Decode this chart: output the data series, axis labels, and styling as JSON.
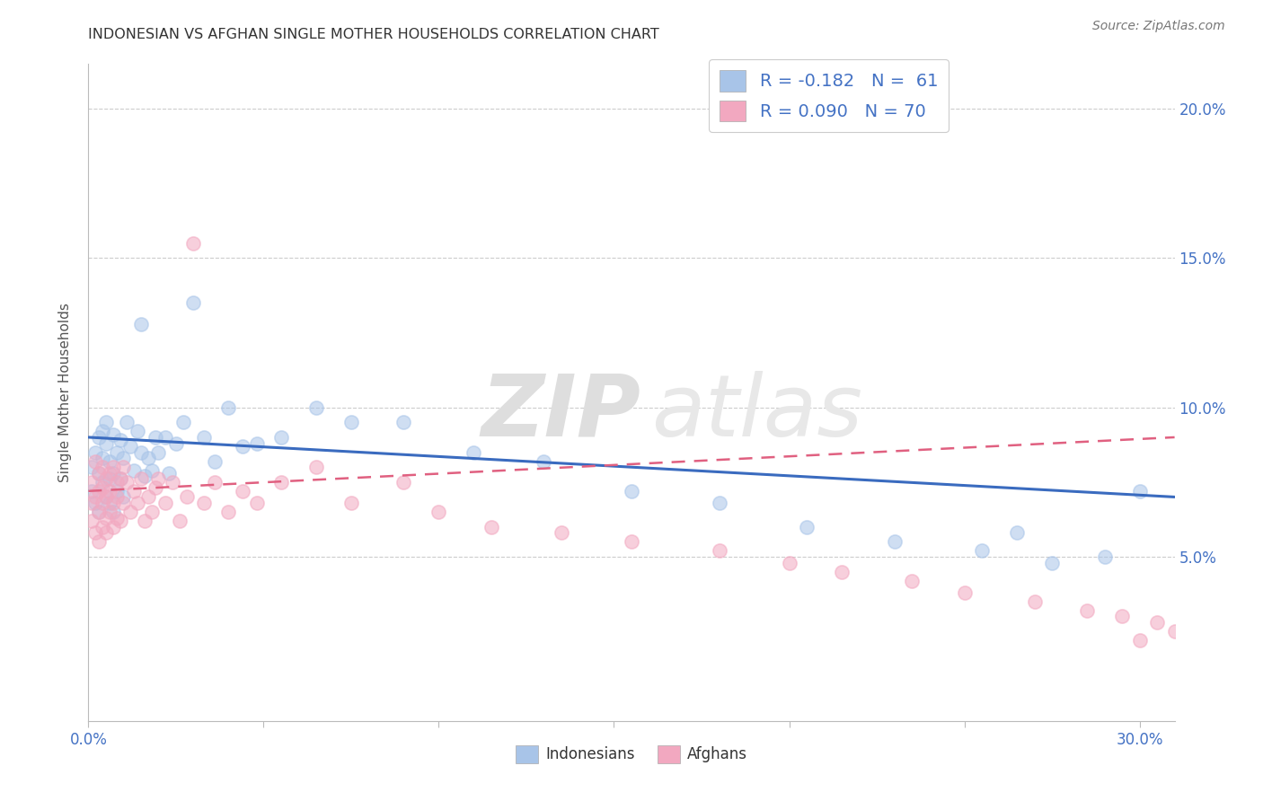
{
  "title": "INDONESIAN VS AFGHAN SINGLE MOTHER HOUSEHOLDS CORRELATION CHART",
  "source": "Source: ZipAtlas.com",
  "ylabel": "Single Mother Households",
  "ylabel_right_ticks": [
    "20.0%",
    "15.0%",
    "10.0%",
    "5.0%"
  ],
  "ylabel_right_vals": [
    0.2,
    0.15,
    0.1,
    0.05
  ],
  "color_indonesian": "#a8c4e8",
  "color_afghan": "#f2a8c0",
  "color_line_indonesian": "#3a6bbf",
  "color_line_afghan": "#e06080",
  "color_grid": "#cccccc",
  "indonesian_x": [
    0.001,
    0.001,
    0.002,
    0.002,
    0.003,
    0.003,
    0.003,
    0.004,
    0.004,
    0.004,
    0.005,
    0.005,
    0.005,
    0.006,
    0.006,
    0.006,
    0.007,
    0.007,
    0.007,
    0.008,
    0.008,
    0.009,
    0.009,
    0.01,
    0.01,
    0.011,
    0.012,
    0.013,
    0.014,
    0.015,
    0.015,
    0.016,
    0.017,
    0.018,
    0.019,
    0.02,
    0.022,
    0.023,
    0.025,
    0.027,
    0.03,
    0.033,
    0.036,
    0.04,
    0.044,
    0.048,
    0.055,
    0.065,
    0.075,
    0.09,
    0.11,
    0.13,
    0.155,
    0.18,
    0.205,
    0.23,
    0.255,
    0.265,
    0.275,
    0.29,
    0.3
  ],
  "indonesian_y": [
    0.08,
    0.072,
    0.085,
    0.068,
    0.09,
    0.078,
    0.065,
    0.092,
    0.075,
    0.083,
    0.088,
    0.07,
    0.095,
    0.082,
    0.076,
    0.068,
    0.091,
    0.078,
    0.065,
    0.085,
    0.072,
    0.089,
    0.076,
    0.083,
    0.07,
    0.095,
    0.087,
    0.079,
    0.092,
    0.085,
    0.128,
    0.077,
    0.083,
    0.079,
    0.09,
    0.085,
    0.09,
    0.078,
    0.088,
    0.095,
    0.135,
    0.09,
    0.082,
    0.1,
    0.087,
    0.088,
    0.09,
    0.1,
    0.095,
    0.095,
    0.085,
    0.082,
    0.072,
    0.068,
    0.06,
    0.055,
    0.052,
    0.058,
    0.048,
    0.05,
    0.072
  ],
  "afghan_x": [
    0.001,
    0.001,
    0.001,
    0.002,
    0.002,
    0.002,
    0.003,
    0.003,
    0.003,
    0.003,
    0.004,
    0.004,
    0.004,
    0.004,
    0.005,
    0.005,
    0.005,
    0.005,
    0.006,
    0.006,
    0.006,
    0.007,
    0.007,
    0.007,
    0.008,
    0.008,
    0.008,
    0.009,
    0.009,
    0.01,
    0.01,
    0.011,
    0.012,
    0.013,
    0.014,
    0.015,
    0.016,
    0.017,
    0.018,
    0.019,
    0.02,
    0.022,
    0.024,
    0.026,
    0.028,
    0.03,
    0.033,
    0.036,
    0.04,
    0.044,
    0.048,
    0.055,
    0.065,
    0.075,
    0.09,
    0.1,
    0.115,
    0.135,
    0.155,
    0.18,
    0.2,
    0.215,
    0.235,
    0.25,
    0.27,
    0.285,
    0.295,
    0.305,
    0.31,
    0.3
  ],
  "afghan_y": [
    0.075,
    0.068,
    0.062,
    0.082,
    0.07,
    0.058,
    0.078,
    0.065,
    0.055,
    0.072,
    0.08,
    0.068,
    0.06,
    0.073,
    0.076,
    0.063,
    0.07,
    0.058,
    0.078,
    0.065,
    0.072,
    0.08,
    0.068,
    0.06,
    0.075,
    0.063,
    0.07,
    0.076,
    0.062,
    0.08,
    0.068,
    0.075,
    0.065,
    0.072,
    0.068,
    0.076,
    0.062,
    0.07,
    0.065,
    0.073,
    0.076,
    0.068,
    0.075,
    0.062,
    0.07,
    0.155,
    0.068,
    0.075,
    0.065,
    0.072,
    0.068,
    0.075,
    0.08,
    0.068,
    0.075,
    0.065,
    0.06,
    0.058,
    0.055,
    0.052,
    0.048,
    0.045,
    0.042,
    0.038,
    0.035,
    0.032,
    0.03,
    0.028,
    0.025,
    0.022
  ],
  "xlim": [
    0.0,
    0.31
  ],
  "ylim": [
    -0.005,
    0.215
  ],
  "indonesian_trend_x": [
    0.0,
    0.31
  ],
  "indonesian_trend_y": [
    0.09,
    0.07
  ],
  "afghan_trend_x": [
    0.0,
    0.31
  ],
  "afghan_trend_y": [
    0.072,
    0.09
  ]
}
